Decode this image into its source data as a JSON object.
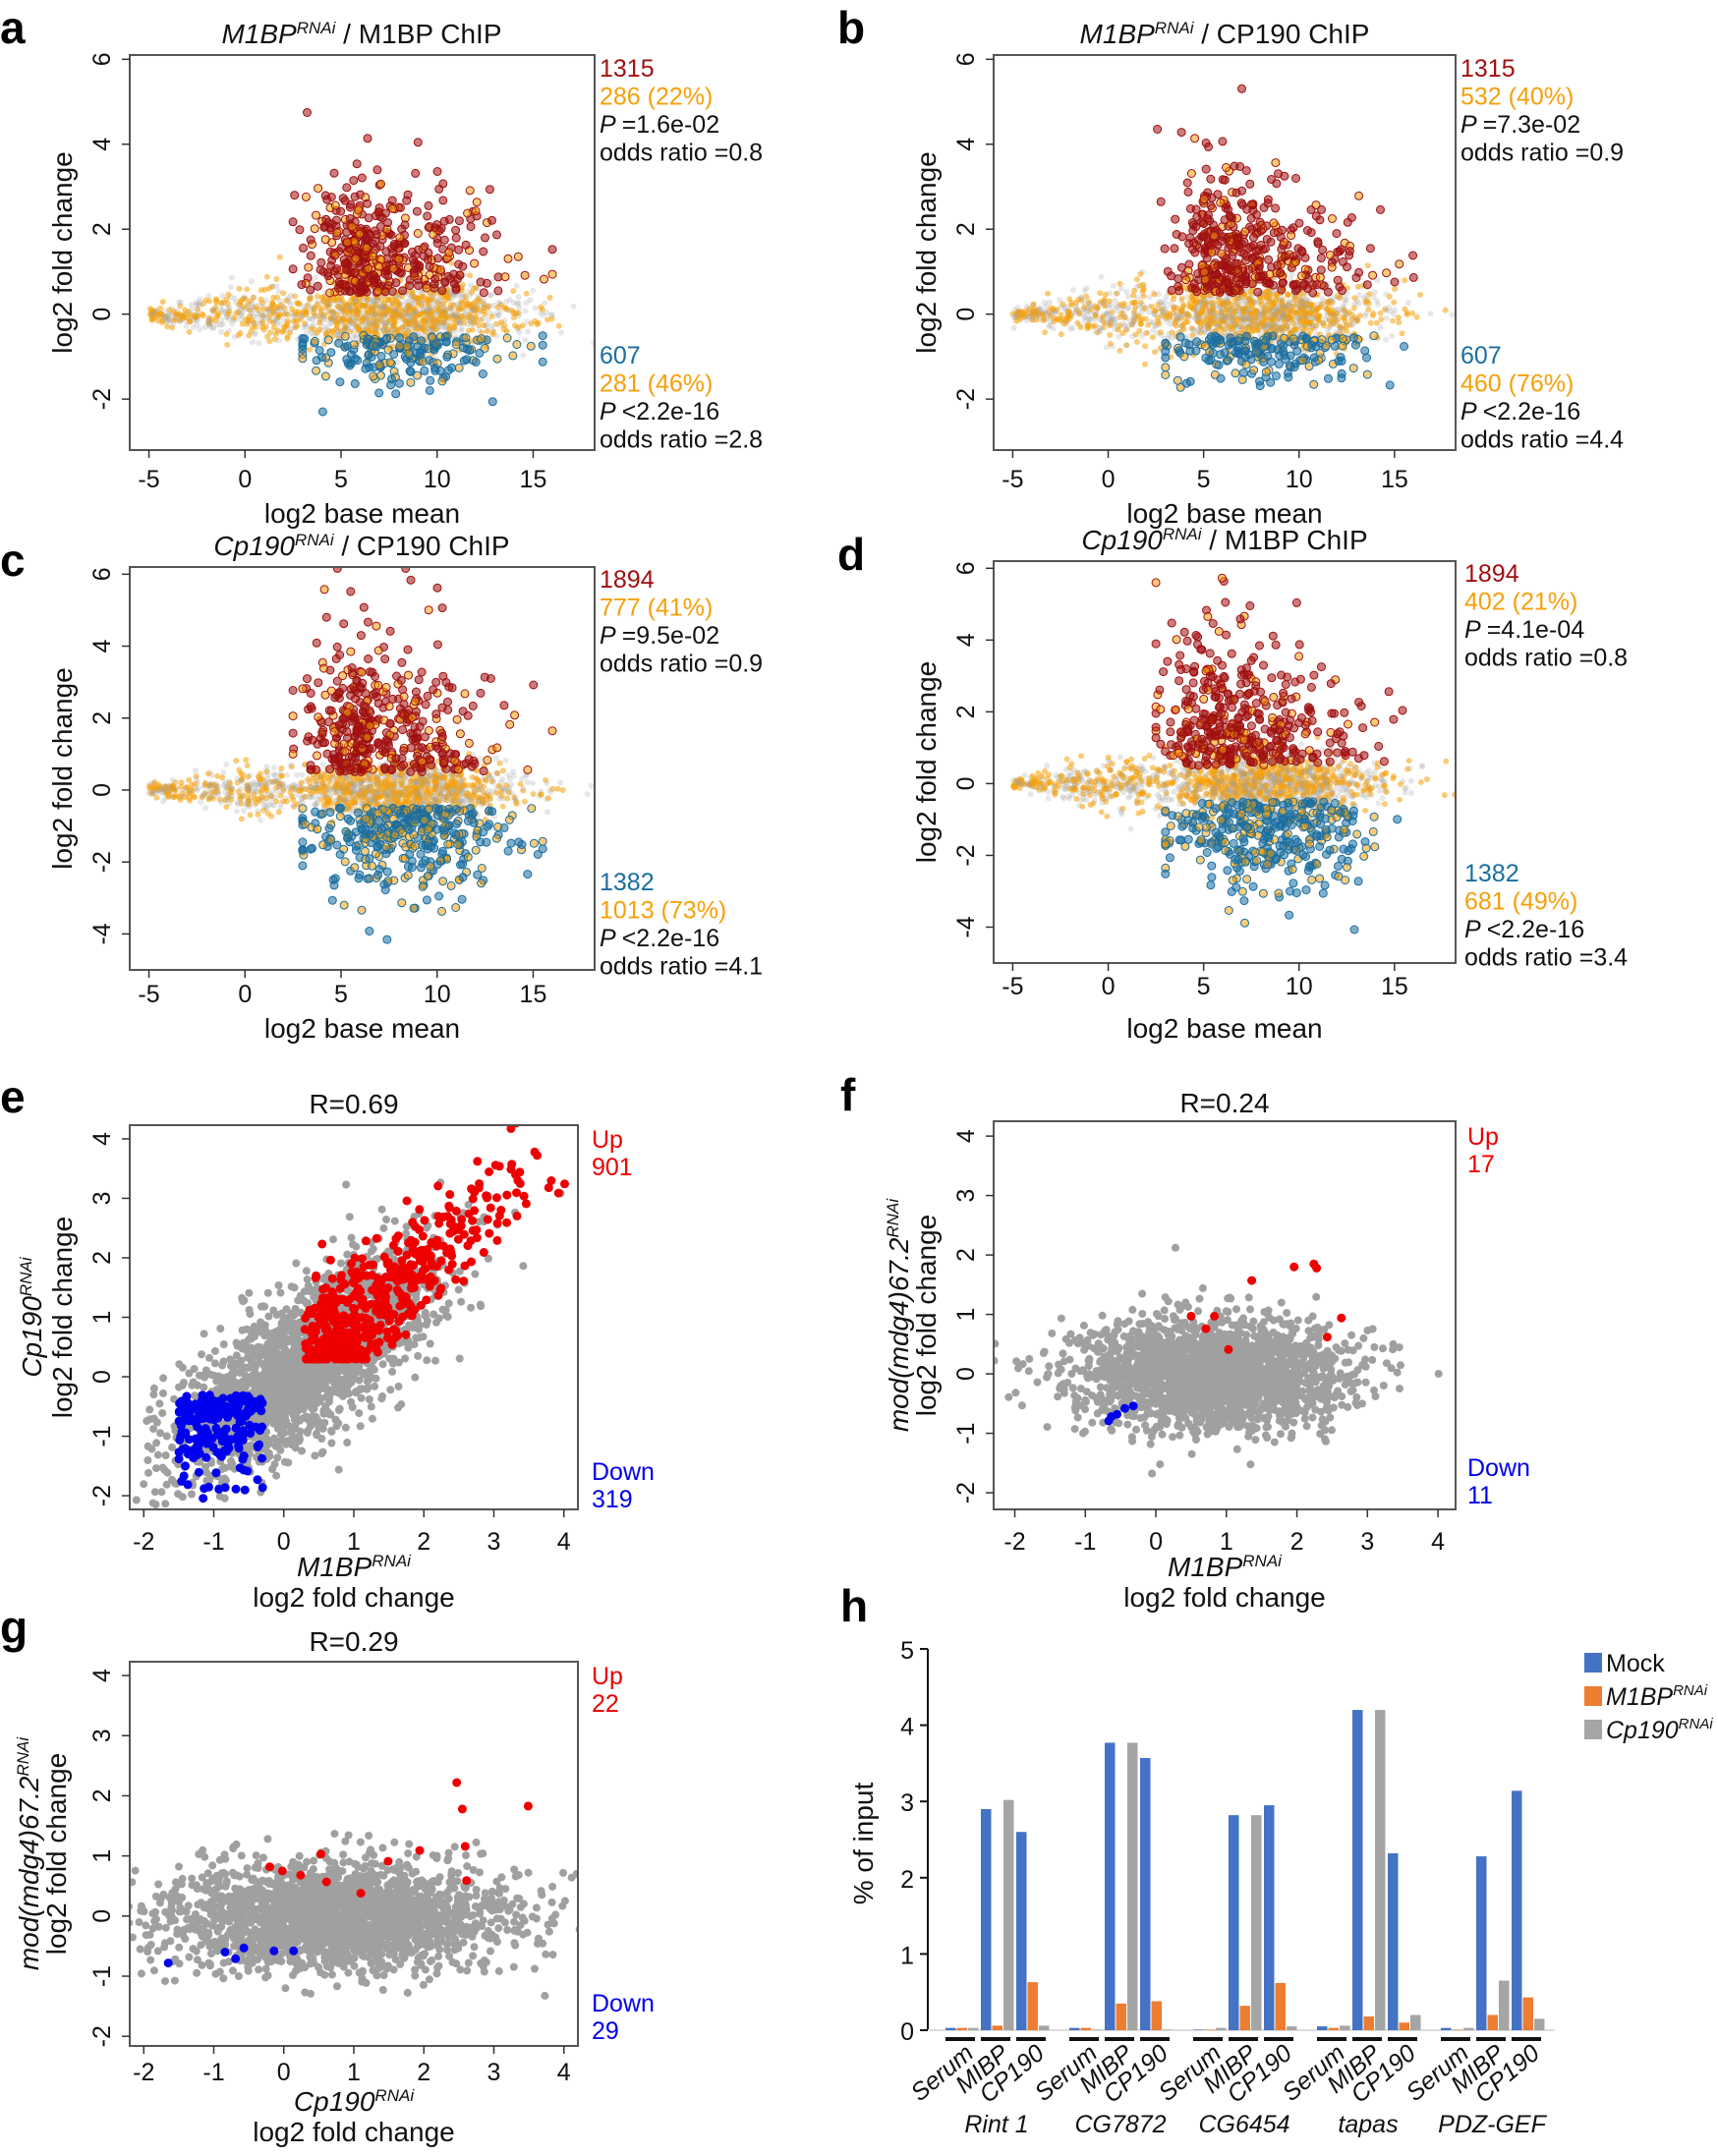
{
  "colors": {
    "up": "#a01010",
    "down": "#1a6ea0",
    "overlap": "#f5a00a",
    "grey": "#a0a0a0",
    "red": "#ee0000",
    "blue": "#0000ee",
    "mock": "#4472c4",
    "m1bp": "#ed7d31",
    "cp190": "#a5a5a5"
  },
  "chart_data": [
    {
      "panel": "a",
      "type": "scatter",
      "title_gene": "M1BP",
      "title_sup": "RNAi",
      "title_rest": " / M1BP ChIP",
      "xlabel": "log2 base mean",
      "ylabel": "log2 fold change",
      "xlim": [
        -6,
        18.2
      ],
      "ylim": [
        -3.2,
        6.1
      ],
      "xticks": [
        "-5",
        "0",
        "5",
        "10",
        "15"
      ],
      "yticks": [
        "-2",
        "0",
        "2",
        "4",
        "6"
      ],
      "up": {
        "count": "1315",
        "overlap": "286 (22%)",
        "p": "=1.6e-02",
        "odds": "odds ratio =0.8"
      },
      "down": {
        "count": "607",
        "overlap": "281 (46%)",
        "p": "<2.2e-16",
        "odds": "odds ratio =2.8"
      }
    },
    {
      "panel": "b",
      "type": "scatter",
      "title_gene": "M1BP",
      "title_sup": "RNAi",
      "title_rest": " / CP190 ChIP",
      "xlabel": "log2 base mean",
      "ylabel": "log2 fold change",
      "xlim": [
        -6,
        18.2
      ],
      "ylim": [
        -3.2,
        6.1
      ],
      "xticks": [
        "-5",
        "0",
        "5",
        "10",
        "15"
      ],
      "yticks": [
        "-2",
        "0",
        "2",
        "4",
        "6"
      ],
      "up": {
        "count": "1315",
        "overlap": "532 (40%)",
        "p": "=7.3e-02",
        "odds": "odds ratio =0.9"
      },
      "down": {
        "count": "607",
        "overlap": "460 (76%)",
        "p": "<2.2e-16",
        "odds": "odds ratio =4.4"
      }
    },
    {
      "panel": "c",
      "type": "scatter",
      "title_gene": "Cp190",
      "title_sup": "RNAi",
      "title_rest": " / CP190 ChIP",
      "xlabel": "log2 base mean",
      "ylabel": "log2 fold change",
      "xlim": [
        -6,
        18.2
      ],
      "ylim": [
        -5.0,
        6.2
      ],
      "xticks": [
        "-5",
        "0",
        "5",
        "10",
        "15"
      ],
      "yticks": [
        "-4",
        "-2",
        "0",
        "2",
        "4",
        "6"
      ],
      "up": {
        "count": "1894",
        "overlap": "777 (41%)",
        "p": "=9.5e-02",
        "odds": "odds ratio =0.9"
      },
      "down": {
        "count": "1382",
        "overlap": "1013 (73%)",
        "p": "<2.2e-16",
        "odds": "odds ratio =4.1"
      }
    },
    {
      "panel": "d",
      "type": "scatter",
      "title_gene": "Cp190",
      "title_sup": "RNAi",
      "title_rest": " / M1BP ChIP",
      "xlabel": "log2 base mean",
      "ylabel": "log2 fold change",
      "xlim": [
        -6,
        18.2
      ],
      "ylim": [
        -5.0,
        6.2
      ],
      "xticks": [
        "-5",
        "0",
        "5",
        "10",
        "15"
      ],
      "yticks": [
        "-4",
        "-2",
        "0",
        "2",
        "4",
        "6"
      ],
      "up": {
        "count": "1894",
        "overlap": "402 (21%)",
        "p": "=4.1e-04",
        "odds": "odds ratio =0.8"
      },
      "down": {
        "count": "1382",
        "overlap": "681 (49%)",
        "p": "<2.2e-16",
        "odds": "odds ratio =3.4"
      }
    },
    {
      "panel": "e",
      "type": "scatter",
      "title": "R=0.69",
      "xlabel_gene": "M1BP",
      "xlabel_sup": "RNAi",
      "xlabel": "log2 fold change",
      "ylabel_gene": "Cp190",
      "ylabel_sup": "RNAi",
      "ylabel": "log2 fold change",
      "xlim": [
        -2.2,
        4.2
      ],
      "ylim": [
        -2.23,
        4.23
      ],
      "xticks": [
        "-2",
        "-1",
        "0",
        "1",
        "2",
        "3",
        "4"
      ],
      "yticks": [
        "-2",
        "-1",
        "0",
        "1",
        "2",
        "3",
        "4"
      ],
      "up_label": "Up",
      "up_count": "901",
      "down_label": "Down",
      "down_count": "319"
    },
    {
      "panel": "f",
      "type": "scatter",
      "title": "R=0.24",
      "xlabel_gene": "M1BP",
      "xlabel_sup": "RNAi",
      "xlabel": "log2 fold change",
      "ylabel_gene": "mod(mdg4)67.2",
      "ylabel_sup": "RNAi",
      "ylabel": "log2 fold change",
      "xlim": [
        -2.3,
        4.25
      ],
      "ylim": [
        -2.28,
        4.25
      ],
      "xticks": [
        "-2",
        "-1",
        "0",
        "1",
        "2",
        "3",
        "4"
      ],
      "yticks": [
        "-2",
        "-1",
        "0",
        "1",
        "2",
        "3",
        "4"
      ],
      "up_label": "Up",
      "up_count": "17",
      "down_label": "Down",
      "down_count": "11",
      "up_points": [
        [
          1.96,
          1.8
        ],
        [
          2.24,
          1.85
        ],
        [
          2.28,
          1.78
        ],
        [
          1.36,
          1.57
        ],
        [
          2.63,
          0.94
        ],
        [
          2.43,
          0.62
        ],
        [
          0.5,
          0.97
        ],
        [
          0.83,
          0.97
        ],
        [
          0.71,
          0.76
        ],
        [
          1.03,
          0.41
        ]
      ],
      "down_points": [
        [
          -0.67,
          -0.79
        ],
        [
          -0.55,
          -0.68
        ],
        [
          -0.44,
          -0.58
        ],
        [
          -0.32,
          -0.54
        ],
        [
          -0.63,
          -0.72
        ]
      ]
    },
    {
      "panel": "g",
      "type": "scatter",
      "title": "R=0.29",
      "xlabel_gene": "Cp190",
      "xlabel_sup": "RNAi",
      "xlabel": "log2 fold change",
      "ylabel_gene": "mod(mdg4)67.2",
      "ylabel_sup": "RNAi",
      "ylabel": "log2 fold change",
      "xlim": [
        -2.2,
        4.2
      ],
      "ylim": [
        -2.16,
        4.23
      ],
      "xticks": [
        "-2",
        "-1",
        "0",
        "1",
        "2",
        "3",
        "4"
      ],
      "yticks": [
        "-2",
        "-1",
        "0",
        "1",
        "2",
        "3",
        "4"
      ],
      "up_label": "Up",
      "up_count": "22",
      "down_label": "Down",
      "down_count": "29",
      "up_points": [
        [
          -0.2,
          0.82
        ],
        [
          -0.02,
          0.75
        ],
        [
          0.24,
          0.68
        ],
        [
          0.53,
          1.03
        ],
        [
          0.61,
          0.57
        ],
        [
          1.1,
          0.38
        ],
        [
          1.49,
          0.91
        ],
        [
          1.94,
          1.09
        ],
        [
          2.47,
          2.22
        ],
        [
          2.55,
          1.78
        ],
        [
          2.61,
          0.59
        ],
        [
          3.49,
          1.83
        ],
        [
          2.59,
          1.16
        ]
      ],
      "down_points": [
        [
          -1.65,
          -0.78
        ],
        [
          -0.84,
          -0.6
        ],
        [
          -0.69,
          -0.71
        ],
        [
          -0.57,
          -0.53
        ],
        [
          -0.14,
          -0.58
        ],
        [
          0.14,
          -0.58
        ]
      ]
    },
    {
      "panel": "h",
      "type": "bar",
      "ylabel": "% of input",
      "ylim": [
        0,
        5
      ],
      "yticks": [
        "0",
        "1",
        "2",
        "3",
        "4",
        "5"
      ],
      "legend": [
        {
          "name": "Mock",
          "sup": ""
        },
        {
          "name": "M1BP",
          "sup": "RNAi"
        },
        {
          "name": "Cp190",
          "sup": "RNAi"
        }
      ],
      "subgroups": [
        "Serum",
        "MIBP",
        "CP190"
      ],
      "groups": [
        {
          "gene": "Rint 1",
          "values": [
            [
              0.03,
              0.03,
              0.03
            ],
            [
              2.9,
              0.06,
              3.02
            ],
            [
              2.6,
              0.63,
              0.06
            ]
          ]
        },
        {
          "gene": "CG7872",
          "values": [
            [
              0.03,
              0.03,
              0.0
            ],
            [
              3.77,
              0.35,
              3.77
            ],
            [
              3.57,
              0.38,
              0.0
            ]
          ]
        },
        {
          "gene": "CG6454",
          "values": [
            [
              0.0,
              0.0,
              0.03
            ],
            [
              2.82,
              0.32,
              2.82
            ],
            [
              2.95,
              0.62,
              0.05
            ]
          ]
        },
        {
          "gene": "tapas",
          "values": [
            [
              0.05,
              0.03,
              0.06
            ],
            [
              4.2,
              0.18,
              4.2
            ],
            [
              2.32,
              0.1,
              0.2
            ]
          ]
        },
        {
          "gene": "PDZ-GEF",
          "values": [
            [
              0.03,
              0.0,
              0.03
            ],
            [
              2.28,
              0.2,
              0.65
            ],
            [
              3.14,
              0.43,
              0.15
            ]
          ]
        }
      ]
    }
  ]
}
